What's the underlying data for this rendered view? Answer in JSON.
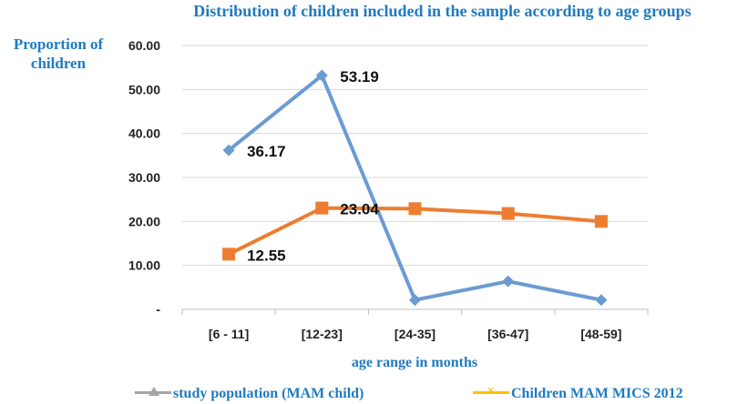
{
  "chart_data": {
    "type": "line",
    "title": "Distribution of children included in the sample according to age groups",
    "xlabel": "age range in months",
    "ylabel": "Proportion of children",
    "categories": [
      "[6 - 11]",
      "[12-23]",
      "[24-35]",
      "[36-47]",
      "[48-59]"
    ],
    "y_ticks": [
      "-",
      "10.00",
      "20.00",
      "30.00",
      "40.00",
      "50.00",
      "60.00"
    ],
    "ylim": [
      0,
      60
    ],
    "grid": true,
    "legend_position": "bottom",
    "series": [
      {
        "name": "study population (MAM child)",
        "line_color": "#6b9bd1",
        "marker": "diamond",
        "values": [
          36.17,
          53.19,
          2.13,
          6.38,
          2.13
        ],
        "data_labels": [
          "36.17",
          "53.19",
          "",
          "",
          ""
        ]
      },
      {
        "name": "Children MAM MICS 2012",
        "line_color": "#ed7d31",
        "marker": "square",
        "values": [
          12.55,
          23.04,
          22.9,
          21.8,
          20.0
        ],
        "data_labels": [
          "12.55",
          "23.04",
          "",
          "",
          ""
        ]
      }
    ],
    "legend_symbols": [
      {
        "line_color": "#a5a5a5",
        "marker_color": "#a5a5a5"
      },
      {
        "line_color": "#ffc000",
        "marker_color": "#ffc000"
      }
    ]
  }
}
